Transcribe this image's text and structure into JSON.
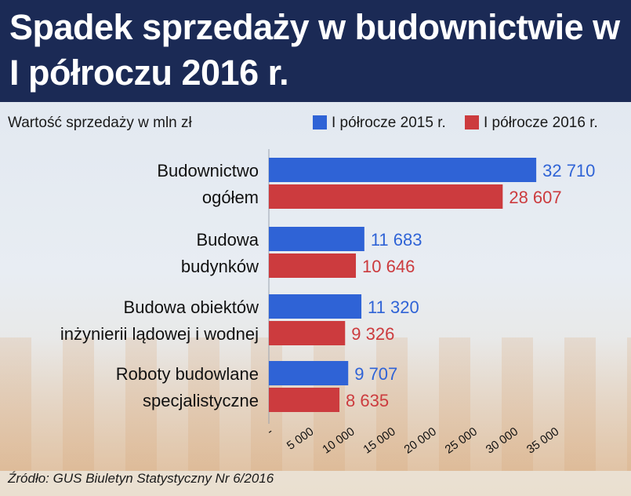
{
  "title": "Spadek sprzedaży w budownictwie w I półroczu 2016 r.",
  "source": "Źródło: GUS Biuletyn Statystyczny Nr 6/2016",
  "colors": {
    "header": "#1b2a55",
    "series_2015": "#2f63d6",
    "series_2016": "#cc3b3e"
  },
  "chart_data": {
    "type": "bar",
    "orientation": "horizontal",
    "subtitle": "Wartość sprzedaży w mln zł",
    "categories": [
      [
        "Budownictwo",
        "ogółem"
      ],
      [
        "Budowa",
        "budynków"
      ],
      [
        "Budowa obiektów",
        "inżynierii lądowej i wodnej"
      ],
      [
        "Roboty budowlane",
        "specjalistyczne"
      ]
    ],
    "series": [
      {
        "name": "I półrocze 2015 r.",
        "values": [
          32710,
          11683,
          11320,
          9707
        ],
        "labels": [
          "32 710",
          "11 683",
          "11 320",
          "9 707"
        ]
      },
      {
        "name": "I półrocze 2016 r.",
        "values": [
          28607,
          10646,
          9326,
          8635
        ],
        "labels": [
          "28 607",
          "10 646",
          "9 326",
          "8 635"
        ]
      }
    ],
    "xlim": [
      0,
      35000
    ],
    "xticks": [
      0,
      5000,
      10000,
      15000,
      20000,
      25000,
      30000,
      35000
    ],
    "xtick_labels": [
      "-",
      "5 000",
      "10 000",
      "15 000",
      "20 000",
      "25 000",
      "30 000",
      "35 000"
    ],
    "legend_position": "top-right",
    "grid": false
  }
}
